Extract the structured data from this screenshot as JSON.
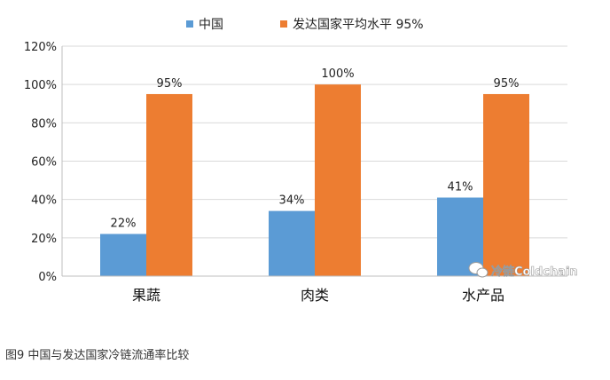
{
  "chart_data": {
    "type": "bar",
    "categories": [
      "果蔬",
      "肉类",
      "水产品"
    ],
    "series": [
      {
        "name": "中国",
        "values": [
          22,
          34,
          41
        ],
        "color": "#5b9bd5"
      },
      {
        "name": "发达国家平均水平 95%",
        "values": [
          95,
          100,
          95
        ],
        "color": "#ed7d31"
      }
    ],
    "data_labels": [
      [
        "22%",
        "34%",
        "41%"
      ],
      [
        "95%",
        "100%",
        "95%"
      ]
    ],
    "y_ticks": [
      "0%",
      "20%",
      "40%",
      "60%",
      "80%",
      "100%",
      "120%"
    ],
    "ylim": [
      0,
      120
    ],
    "grid": true,
    "legend_position": "top"
  },
  "watermark": {
    "text": "冷链Coldchain",
    "icon": "wechat-icon"
  },
  "caption": "图9  中国与发达国家冷链流通率比较"
}
